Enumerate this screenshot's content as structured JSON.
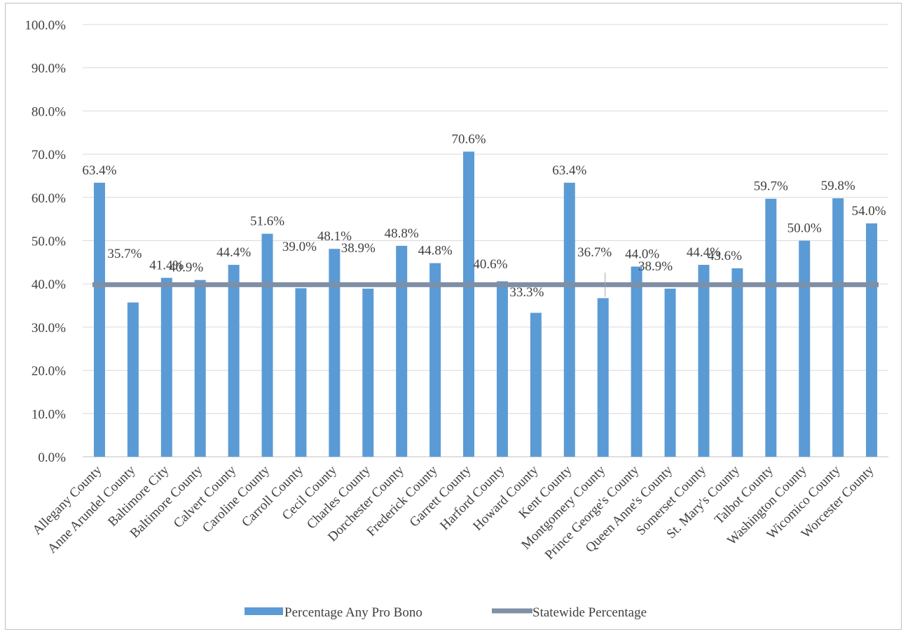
{
  "chart_data": {
    "type": "bar",
    "categories": [
      "Allegany County",
      "Anne Arundel County",
      "Baltimore City",
      "Baltimore County",
      "Calvert County",
      "Caroline County",
      "Carroll County",
      "Cecil County",
      "Charles County",
      "Dorchester County",
      "Frederick County",
      "Garrett County",
      "Harford County",
      "Howard County",
      "Kent County",
      "Montgomery County",
      "Prince George's County",
      "Queen Anne's County",
      "Somerset County",
      "St. Mary's County",
      "Talbot County",
      "Washington County",
      "Wicomico County",
      "Worcester County"
    ],
    "series": [
      {
        "name": "Percentage Any Pro Bono",
        "type": "bar",
        "color": "#5b9bd5",
        "values": [
          63.4,
          35.7,
          41.4,
          40.9,
          44.4,
          51.6,
          39.0,
          48.1,
          38.9,
          48.8,
          44.8,
          70.6,
          40.6,
          33.3,
          63.4,
          36.7,
          44.0,
          38.9,
          44.4,
          43.6,
          59.7,
          50.0,
          59.8,
          54.0
        ],
        "labels": [
          "63.4%",
          "35.7%",
          "41.4%",
          "40.9%",
          "44.4%",
          "51.6%",
          "39.0%",
          "48.1%",
          "38.9%",
          "48.8%",
          "44.8%",
          "70.6%",
          "40.6%",
          "33.3%",
          "63.4%",
          "36.7%",
          "44.0%",
          "38.9%",
          "44.4%",
          "43.6%",
          "59.7%",
          "50.0%",
          "59.8%",
          "54.0%"
        ]
      },
      {
        "name": "Statewide Percentage",
        "type": "line",
        "color": "#7f8fa6",
        "value": 39.8
      }
    ],
    "yticks": [
      "0.0%",
      "10.0%",
      "20.0%",
      "30.0%",
      "40.0%",
      "50.0%",
      "60.0%",
      "70.0%",
      "80.0%",
      "90.0%",
      "100.0%"
    ],
    "ylim": [
      0,
      100
    ],
    "grid": true,
    "legend": "bottom"
  }
}
